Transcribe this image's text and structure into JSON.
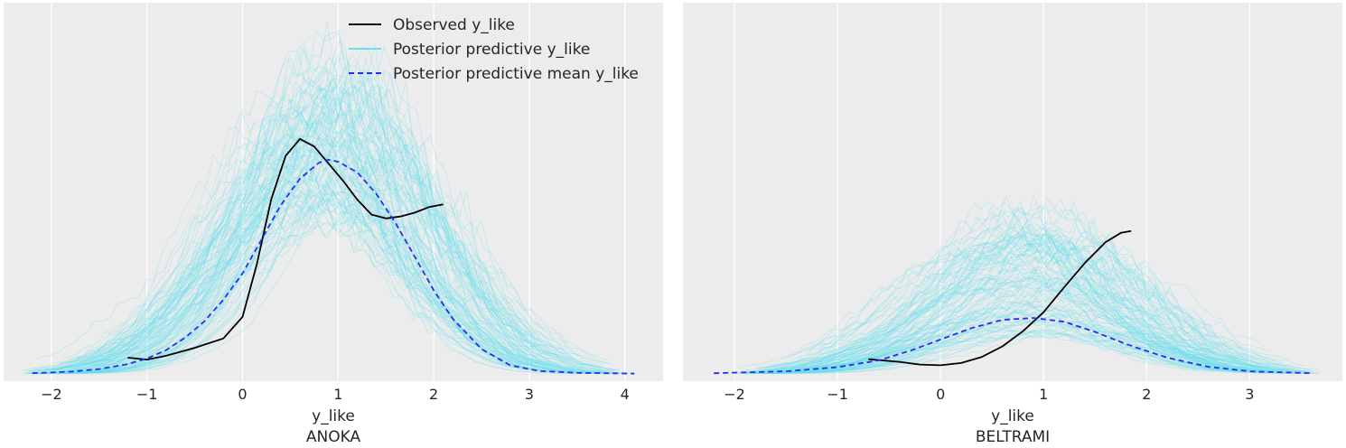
{
  "chart_data": [
    {
      "type": "line",
      "subplot_title": "ANOKA",
      "xlabel": "y_like",
      "ylabel": "",
      "xlim": [
        -2.5,
        4.4
      ],
      "ylim": [
        -0.02,
        0.98
      ],
      "xticks": [
        -2,
        -1,
        0,
        1,
        2,
        3,
        4
      ],
      "xtick_labels": [
        "−2",
        "−1",
        "0",
        "1",
        "2",
        "3",
        "4"
      ],
      "grid": true,
      "legend": {
        "placement": "top-center",
        "entries": [
          "Observed y_like",
          "Posterior predictive y_like",
          "Posterior predictive mean y_like"
        ]
      },
      "series": [
        {
          "name": "Observed y_like",
          "style": "solid",
          "color": "#000000",
          "x": [
            -1.2,
            -1.0,
            -0.8,
            -0.5,
            -0.2,
            0.0,
            0.15,
            0.3,
            0.45,
            0.6,
            0.75,
            0.9,
            1.05,
            1.2,
            1.35,
            1.5,
            1.65,
            1.8,
            1.95,
            2.1
          ],
          "y": [
            0.042,
            0.037,
            0.047,
            0.068,
            0.093,
            0.15,
            0.29,
            0.46,
            0.575,
            0.62,
            0.6,
            0.555,
            0.51,
            0.46,
            0.42,
            0.41,
            0.415,
            0.425,
            0.44,
            0.447
          ]
        },
        {
          "name": "Posterior predictive mean y_like",
          "style": "dashed",
          "color": "#2a2eec",
          "x": [
            -2.2,
            -1.8,
            -1.5,
            -1.2,
            -1.0,
            -0.8,
            -0.6,
            -0.4,
            -0.2,
            0.0,
            0.2,
            0.4,
            0.6,
            0.8,
            0.9,
            1.0,
            1.2,
            1.4,
            1.6,
            1.8,
            2.0,
            2.2,
            2.5,
            2.8,
            3.1,
            3.5,
            4.1
          ],
          "y": [
            0.001,
            0.005,
            0.012,
            0.025,
            0.04,
            0.062,
            0.095,
            0.138,
            0.195,
            0.265,
            0.355,
            0.445,
            0.515,
            0.557,
            0.565,
            0.56,
            0.532,
            0.475,
            0.398,
            0.31,
            0.22,
            0.145,
            0.065,
            0.022,
            0.007,
            0.002,
            0.0
          ]
        }
      ],
      "posterior_predictive_band": {
        "name": "Posterior predictive y_like",
        "color": "#66e0ee",
        "x_range": [
          -2.3,
          4.0
        ],
        "center": 0.85,
        "peak_range": [
          0.4,
          0.82
        ]
      }
    },
    {
      "type": "line",
      "subplot_title": "BELTRAMI",
      "xlabel": "y_like",
      "ylabel": "",
      "xlim": [
        -2.5,
        3.9
      ],
      "ylim": [
        -0.02,
        0.98
      ],
      "xticks": [
        -2,
        -1,
        0,
        1,
        2,
        3
      ],
      "xtick_labels": [
        "−2",
        "−1",
        "0",
        "1",
        "2",
        "3"
      ],
      "grid": true,
      "series": [
        {
          "name": "Observed y_like",
          "style": "solid",
          "color": "#000000",
          "x": [
            -0.7,
            -0.4,
            -0.2,
            0.0,
            0.2,
            0.4,
            0.6,
            0.8,
            1.0,
            1.2,
            1.4,
            1.6,
            1.75,
            1.85
          ],
          "y": [
            0.038,
            0.031,
            0.024,
            0.022,
            0.028,
            0.044,
            0.072,
            0.112,
            0.162,
            0.228,
            0.292,
            0.347,
            0.372,
            0.377
          ]
        },
        {
          "name": "Posterior predictive mean y_like",
          "style": "dashed",
          "color": "#2a2eec",
          "x": [
            -2.2,
            -1.5,
            -1.0,
            -0.6,
            -0.3,
            0.0,
            0.3,
            0.6,
            0.9,
            1.2,
            1.5,
            1.8,
            2.2,
            2.6,
            3.0,
            3.6
          ],
          "y": [
            0.001,
            0.006,
            0.017,
            0.035,
            0.06,
            0.09,
            0.12,
            0.142,
            0.147,
            0.137,
            0.11,
            0.078,
            0.042,
            0.018,
            0.006,
            0.001
          ]
        }
      ],
      "posterior_predictive_band": {
        "name": "Posterior predictive y_like",
        "color": "#66e0ee",
        "x_range": [
          -2.0,
          3.7
        ],
        "center": 0.9,
        "peak_range": [
          0.1,
          0.42
        ]
      }
    }
  ],
  "colors": {
    "panel_background": "#ececec",
    "grid": "#ffffff",
    "observed": "#000000",
    "posterior_predictive": "#66e0ee",
    "posterior_mean": "#2a2eec"
  }
}
